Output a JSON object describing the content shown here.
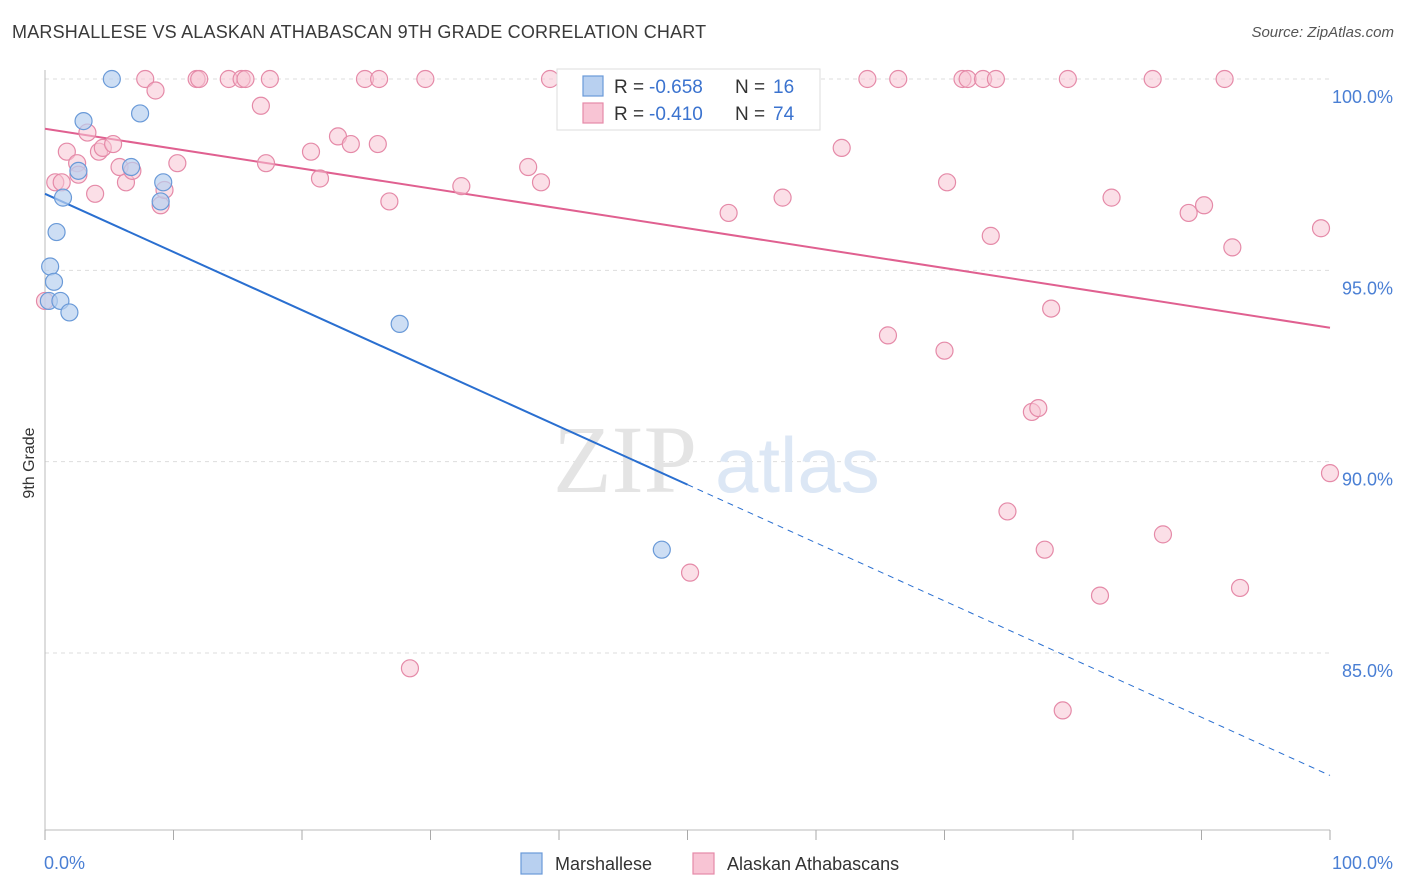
{
  "header": {
    "title": "MARSHALLESE VS ALASKAN ATHABASCAN 9TH GRADE CORRELATION CHART",
    "source": "Source: ZipAtlas.com"
  },
  "watermark": {
    "zip": "ZIP",
    "atlas": "atlas"
  },
  "colors": {
    "blue_fill": "#b8d0f0",
    "blue_stroke": "#6a9ad8",
    "blue_line": "#2a6fd0",
    "pink_fill": "#f8c4d4",
    "pink_stroke": "#e58aa8",
    "pink_line": "#e06090",
    "tick_text": "#4a7fd4",
    "grid": "#dddddd"
  },
  "legend": {
    "rows": [
      {
        "r_label": "R = ",
        "r_value": "-0.658",
        "n_label": "N = ",
        "n_value": "16"
      },
      {
        "r_label": "R = ",
        "r_value": "-0.410",
        "n_label": "N = ",
        "n_value": "74"
      }
    ]
  },
  "chart_data": {
    "type": "scatter",
    "title": "MARSHALLESE VS ALASKAN ATHABASCAN 9TH GRADE CORRELATION CHART",
    "xlabel": "",
    "ylabel": "9th Grade",
    "xlim": [
      0,
      100
    ],
    "ylim": [
      80.6,
      100.7
    ],
    "x_tick_labels": [
      "0.0%",
      "100.0%"
    ],
    "y_ticks": [
      100,
      95,
      90,
      85
    ],
    "y_tick_labels": [
      "100.0%",
      "95.0%",
      "90.0%",
      "85.0%"
    ],
    "grid": true,
    "legend_position": "top-center",
    "series": [
      {
        "name": "Marshallese",
        "color": "#b8d0f0",
        "points": [
          [
            0.3,
            94.2
          ],
          [
            0.4,
            95.1
          ],
          [
            0.7,
            94.7
          ],
          [
            0.9,
            96.0
          ],
          [
            1.2,
            94.2
          ],
          [
            1.4,
            96.9
          ],
          [
            1.9,
            93.9
          ],
          [
            2.6,
            97.6
          ],
          [
            3.0,
            98.9
          ],
          [
            5.2,
            100.0
          ],
          [
            6.7,
            97.7
          ],
          [
            7.4,
            99.1
          ],
          [
            9.0,
            96.8
          ],
          [
            9.2,
            97.3
          ],
          [
            27.6,
            93.6
          ],
          [
            48.0,
            87.7
          ]
        ],
        "trend": {
          "x": [
            0,
            50,
            100
          ],
          "y": [
            97.0,
            89.4,
            81.8
          ],
          "solid_until_x": 50
        }
      },
      {
        "name": "Alaskan Athabascans",
        "color": "#f8c4d4",
        "points": [
          [
            0.0,
            94.2
          ],
          [
            0.8,
            97.3
          ],
          [
            1.3,
            97.3
          ],
          [
            1.7,
            98.1
          ],
          [
            2.5,
            97.8
          ],
          [
            2.6,
            97.5
          ],
          [
            3.3,
            98.6
          ],
          [
            3.9,
            97.0
          ],
          [
            4.2,
            98.1
          ],
          [
            4.5,
            98.2
          ],
          [
            5.3,
            98.3
          ],
          [
            5.8,
            97.7
          ],
          [
            6.3,
            97.3
          ],
          [
            6.8,
            97.6
          ],
          [
            7.8,
            100.0
          ],
          [
            8.6,
            99.7
          ],
          [
            9.0,
            96.7
          ],
          [
            9.3,
            97.1
          ],
          [
            10.3,
            97.8
          ],
          [
            11.8,
            100.0
          ],
          [
            12.0,
            100.0
          ],
          [
            14.3,
            100.0
          ],
          [
            15.3,
            100.0
          ],
          [
            15.6,
            100.0
          ],
          [
            16.8,
            99.3
          ],
          [
            17.2,
            97.8
          ],
          [
            17.5,
            100.0
          ],
          [
            20.7,
            98.1
          ],
          [
            21.4,
            97.4
          ],
          [
            22.8,
            98.5
          ],
          [
            23.8,
            98.3
          ],
          [
            24.9,
            100.0
          ],
          [
            25.9,
            98.3
          ],
          [
            26.0,
            100.0
          ],
          [
            26.8,
            96.8
          ],
          [
            28.4,
            84.6
          ],
          [
            29.6,
            100.0
          ],
          [
            32.4,
            97.2
          ],
          [
            37.6,
            97.7
          ],
          [
            38.6,
            97.3
          ],
          [
            39.3,
            100.0
          ],
          [
            41.0,
            100.0
          ],
          [
            50.2,
            87.1
          ],
          [
            53.2,
            96.5
          ],
          [
            57.4,
            96.9
          ],
          [
            62.0,
            98.2
          ],
          [
            65.6,
            93.3
          ],
          [
            66.4,
            100.0
          ],
          [
            70.0,
            92.9
          ],
          [
            70.2,
            97.3
          ],
          [
            71.4,
            100.0
          ],
          [
            71.8,
            100.0
          ],
          [
            73.0,
            100.0
          ],
          [
            73.6,
            95.9
          ],
          [
            74.0,
            100.0
          ],
          [
            74.9,
            88.7
          ],
          [
            76.8,
            91.3
          ],
          [
            77.3,
            91.4
          ],
          [
            77.8,
            87.7
          ],
          [
            78.3,
            94.0
          ],
          [
            79.2,
            83.5
          ],
          [
            79.6,
            100.0
          ],
          [
            82.1,
            86.5
          ],
          [
            83.0,
            96.9
          ],
          [
            86.2,
            100.0
          ],
          [
            87.0,
            88.1
          ],
          [
            89.0,
            96.5
          ],
          [
            90.2,
            96.7
          ],
          [
            91.8,
            100.0
          ],
          [
            92.4,
            95.6
          ],
          [
            93.0,
            86.7
          ],
          [
            99.3,
            96.1
          ],
          [
            100.0,
            89.7
          ],
          [
            64.0,
            100.0
          ]
        ],
        "trend": {
          "x": [
            0,
            100
          ],
          "y": [
            98.7,
            93.5
          ]
        }
      }
    ]
  }
}
